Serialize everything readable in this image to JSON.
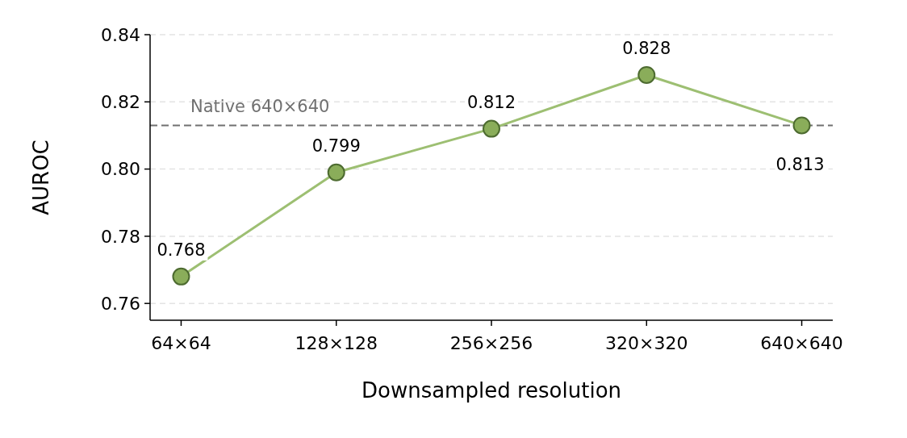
{
  "chart_data": {
    "type": "line",
    "xlabel": "Downsampled resolution",
    "ylabel": "AUROC",
    "categories": [
      "64×64",
      "128×128",
      "256×256",
      "320×320",
      "640×640"
    ],
    "series": [
      {
        "color": "#8aad5a",
        "values": [
          0.768,
          0.799,
          0.812,
          0.828,
          0.813
        ]
      }
    ],
    "ylim": [
      0.755,
      0.84
    ],
    "yticks": [
      {
        "value": 0.76,
        "label": "0.76"
      },
      {
        "value": 0.78,
        "label": "0.78"
      },
      {
        "value": 0.8,
        "label": "0.80"
      },
      {
        "value": 0.82,
        "label": "0.82"
      },
      {
        "value": 0.84,
        "label": "0.84"
      }
    ],
    "grid": "y",
    "marker": "circle",
    "line_style": "solid",
    "data_labels": true,
    "ref_lines": [
      {
        "axis": "y",
        "value": 0.813,
        "label": "Native 640×640",
        "color": "#707070",
        "line_style": "dashed"
      }
    ]
  }
}
